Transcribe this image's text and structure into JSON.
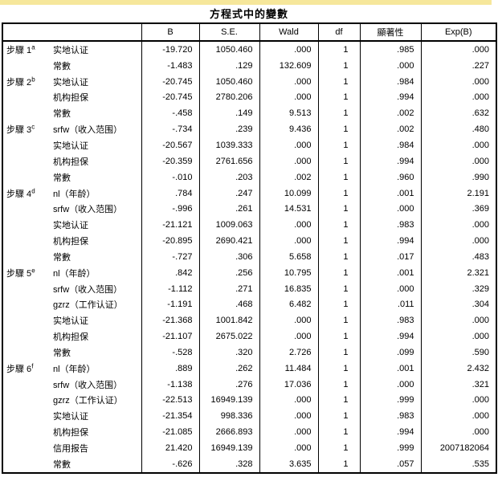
{
  "page": {
    "title": "方程式中的變數",
    "top_strip_color": "#F6E79B"
  },
  "table": {
    "columns": [
      "B",
      "S.E.",
      "Wald",
      "df",
      "顯著性",
      "Exp(B)"
    ],
    "rows": [
      {
        "step": "步驟 1",
        "sup": "a",
        "var": "实地认证",
        "values": [
          "-19.720",
          "1050.460",
          ".000",
          "1",
          ".985",
          ".000"
        ]
      },
      {
        "step": "",
        "sup": "",
        "var": "常數",
        "values": [
          "-1.483",
          ".129",
          "132.609",
          "1",
          ".000",
          ".227"
        ]
      },
      {
        "step": "步驟 2",
        "sup": "b",
        "var": "实地认证",
        "values": [
          "-20.745",
          "1050.460",
          ".000",
          "1",
          ".984",
          ".000"
        ]
      },
      {
        "step": "",
        "sup": "",
        "var": "机构担保",
        "values": [
          "-20.745",
          "2780.206",
          ".000",
          "1",
          ".994",
          ".000"
        ]
      },
      {
        "step": "",
        "sup": "",
        "var": "常數",
        "values": [
          "-.458",
          ".149",
          "9.513",
          "1",
          ".002",
          ".632"
        ]
      },
      {
        "step": "步驟 3",
        "sup": "c",
        "var": "srfw（收入范围）",
        "values": [
          "-.734",
          ".239",
          "9.436",
          "1",
          ".002",
          ".480"
        ]
      },
      {
        "step": "",
        "sup": "",
        "var": "实地认证",
        "values": [
          "-20.567",
          "1039.333",
          ".000",
          "1",
          ".984",
          ".000"
        ]
      },
      {
        "step": "",
        "sup": "",
        "var": "机构担保",
        "values": [
          "-20.359",
          "2761.656",
          ".000",
          "1",
          ".994",
          ".000"
        ]
      },
      {
        "step": "",
        "sup": "",
        "var": "常數",
        "values": [
          "-.010",
          ".203",
          ".002",
          "1",
          ".960",
          ".990"
        ]
      },
      {
        "step": "步驟 4",
        "sup": "d",
        "var": "nl（年龄）",
        "values": [
          ".784",
          ".247",
          "10.099",
          "1",
          ".001",
          "2.191"
        ]
      },
      {
        "step": "",
        "sup": "",
        "var": "srfw（收入范围）",
        "values": [
          "-.996",
          ".261",
          "14.531",
          "1",
          ".000",
          ".369"
        ]
      },
      {
        "step": "",
        "sup": "",
        "var": "实地认证",
        "values": [
          "-21.121",
          "1009.063",
          ".000",
          "1",
          ".983",
          ".000"
        ]
      },
      {
        "step": "",
        "sup": "",
        "var": "机构担保",
        "values": [
          "-20.895",
          "2690.421",
          ".000",
          "1",
          ".994",
          ".000"
        ]
      },
      {
        "step": "",
        "sup": "",
        "var": "常數",
        "values": [
          "-.727",
          ".306",
          "5.658",
          "1",
          ".017",
          ".483"
        ]
      },
      {
        "step": "步驟 5",
        "sup": "e",
        "var": "nl（年龄）",
        "values": [
          ".842",
          ".256",
          "10.795",
          "1",
          ".001",
          "2.321"
        ]
      },
      {
        "step": "",
        "sup": "",
        "var": "srfw（收入范围）",
        "values": [
          "-1.112",
          ".271",
          "16.835",
          "1",
          ".000",
          ".329"
        ]
      },
      {
        "step": "",
        "sup": "",
        "var": "gzrz（工作认证）",
        "values": [
          "-1.191",
          ".468",
          "6.482",
          "1",
          ".011",
          ".304"
        ]
      },
      {
        "step": "",
        "sup": "",
        "var": "实地认证",
        "values": [
          "-21.368",
          "1001.842",
          ".000",
          "1",
          ".983",
          ".000"
        ]
      },
      {
        "step": "",
        "sup": "",
        "var": "机构担保",
        "values": [
          "-21.107",
          "2675.022",
          ".000",
          "1",
          ".994",
          ".000"
        ]
      },
      {
        "step": "",
        "sup": "",
        "var": "常數",
        "values": [
          "-.528",
          ".320",
          "2.726",
          "1",
          ".099",
          ".590"
        ]
      },
      {
        "step": "步驟 6",
        "sup": "f",
        "var": "nl（年龄）",
        "values": [
          ".889",
          ".262",
          "11.484",
          "1",
          ".001",
          "2.432"
        ]
      },
      {
        "step": "",
        "sup": "",
        "var": "srfw（收入范围）",
        "values": [
          "-1.138",
          ".276",
          "17.036",
          "1",
          ".000",
          ".321"
        ]
      },
      {
        "step": "",
        "sup": "",
        "var": "gzrz（工作认证）",
        "values": [
          "-22.513",
          "16949.139",
          ".000",
          "1",
          ".999",
          ".000"
        ]
      },
      {
        "step": "",
        "sup": "",
        "var": "实地认证",
        "values": [
          "-21.354",
          "998.336",
          ".000",
          "1",
          ".983",
          ".000"
        ]
      },
      {
        "step": "",
        "sup": "",
        "var": "机构担保",
        "values": [
          "-21.085",
          "2666.893",
          ".000",
          "1",
          ".994",
          ".000"
        ]
      },
      {
        "step": "",
        "sup": "",
        "var": "信用报告",
        "values": [
          "21.420",
          "16949.139",
          ".000",
          "1",
          ".999",
          "2007182064"
        ]
      },
      {
        "step": "",
        "sup": "",
        "var": "常數",
        "values": [
          "-.626",
          ".328",
          "3.635",
          "1",
          ".057",
          ".535"
        ]
      }
    ]
  }
}
